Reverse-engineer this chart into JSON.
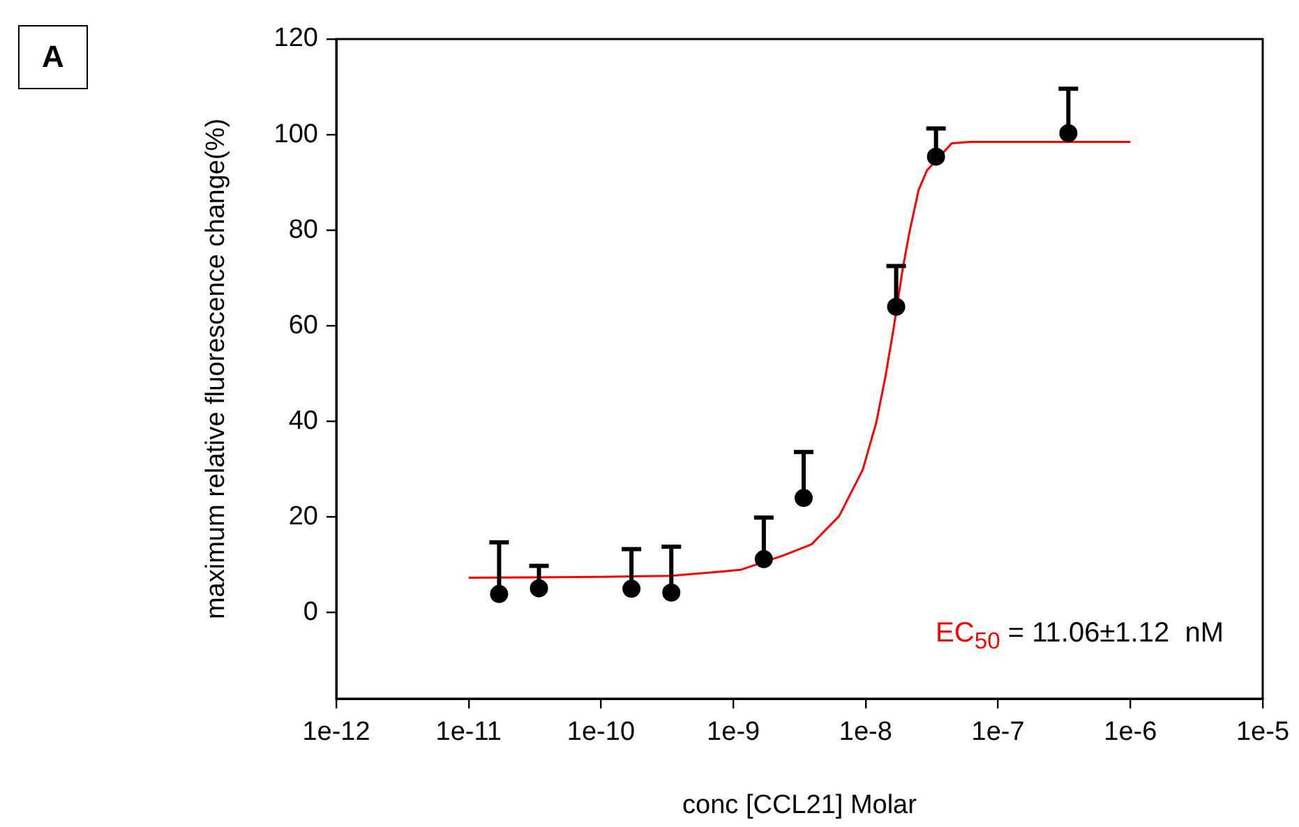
{
  "chart_data": {
    "type": "scatter",
    "title": "A",
    "xlabel": "conc [CCL21] Molar",
    "ylabel": "maximum relative fluorescence change(%)",
    "log": "x",
    "xlim": [
      1e-12,
      1e-05
    ],
    "xticks": [
      {
        "value": 1e-12,
        "label": "1e-12"
      },
      {
        "value": 1e-11,
        "label": "1e-11"
      },
      {
        "value": 1e-10,
        "label": "1e-10"
      },
      {
        "value": 1e-09,
        "label": "1e-9"
      },
      {
        "value": 1e-08,
        "label": "1e-8"
      },
      {
        "value": 1e-07,
        "label": "1e-7"
      },
      {
        "value": 1e-06,
        "label": "1e-6"
      },
      {
        "value": 1e-05,
        "label": "1e-5"
      }
    ],
    "ylim": [
      -18,
      120
    ],
    "yticks": [
      0,
      20,
      40,
      60,
      80,
      100,
      120
    ],
    "grid": false,
    "legend": false,
    "series": [
      {
        "color": "#000000",
        "marker": "circle",
        "x": [
          1.7e-11,
          3.4e-11,
          1.7e-10,
          3.4e-10,
          1.7e-09,
          3.4e-09,
          1.7e-08,
          3.4e-08,
          3.4e-07
        ],
        "values": [
          3.9,
          5.1,
          5.0,
          4.2,
          11.2,
          24.0,
          64.0,
          95.4,
          100.3
        ],
        "errors": [
          [
            3.9,
            14.7
          ],
          [
            5.1,
            9.8
          ],
          [
            5.0,
            13.3
          ],
          [
            4.2,
            13.8
          ],
          [
            11.2,
            19.9
          ],
          [
            24.0,
            33.6
          ],
          [
            64.0,
            72.5
          ],
          [
            95.4,
            101.3
          ],
          [
            100.3,
            109.6
          ]
        ]
      },
      {
        "type": "line",
        "color": "#ff0000",
        "marker": "none",
        "line_style": "solid",
        "x": [
          1e-11,
          1e-10,
          3.4e-10,
          8.9e-10,
          1.15e-09,
          2.4e-09,
          3.9e-09,
          6.3e-09,
          9.5e-09,
          1.2e-08,
          1.41e-08,
          1.62e-08,
          1.9e-08,
          2.14e-08,
          2.51e-08,
          2.9e-08,
          4.47e-08,
          6.17e-08,
          1e-06
        ],
        "values": [
          7.3,
          7.5,
          7.7,
          8.7,
          9.0,
          12.0,
          14.3,
          20.2,
          29.9,
          39.7,
          49.4,
          59.2,
          71.8,
          79.6,
          88.4,
          92.5,
          98.2,
          98.5,
          98.5
        ]
      }
    ],
    "annotations": [
      "EC$_{50}$ = 11.06±1.12  nM"
    ]
  }
}
